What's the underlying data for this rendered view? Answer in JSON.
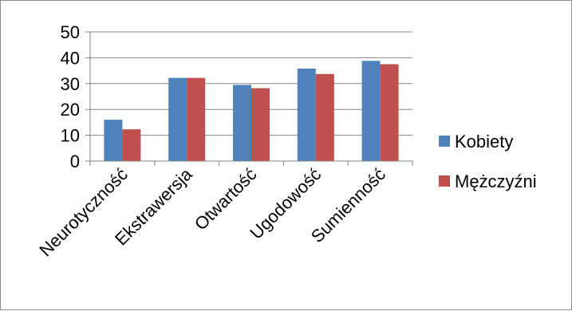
{
  "chart_data": {
    "type": "bar",
    "title": "",
    "xlabel": "",
    "ylabel": "",
    "categories": [
      "Neurotyczność",
      "Ekstrawersja",
      "Otwartość",
      "Ugodowość",
      "Sumienność"
    ],
    "series": [
      {
        "name": "Kobiety",
        "values": [
          16,
          32.2,
          29.5,
          35.8,
          38.8
        ],
        "color": "#4f81bd"
      },
      {
        "name": "Mężczyźni",
        "values": [
          12.3,
          32.2,
          28.2,
          33.7,
          37.5
        ],
        "color": "#c0504d"
      }
    ],
    "ylim": [
      0,
      50
    ],
    "yticks": [
      0,
      10,
      20,
      30,
      40,
      50
    ],
    "grid": true,
    "legend_position": "right"
  }
}
